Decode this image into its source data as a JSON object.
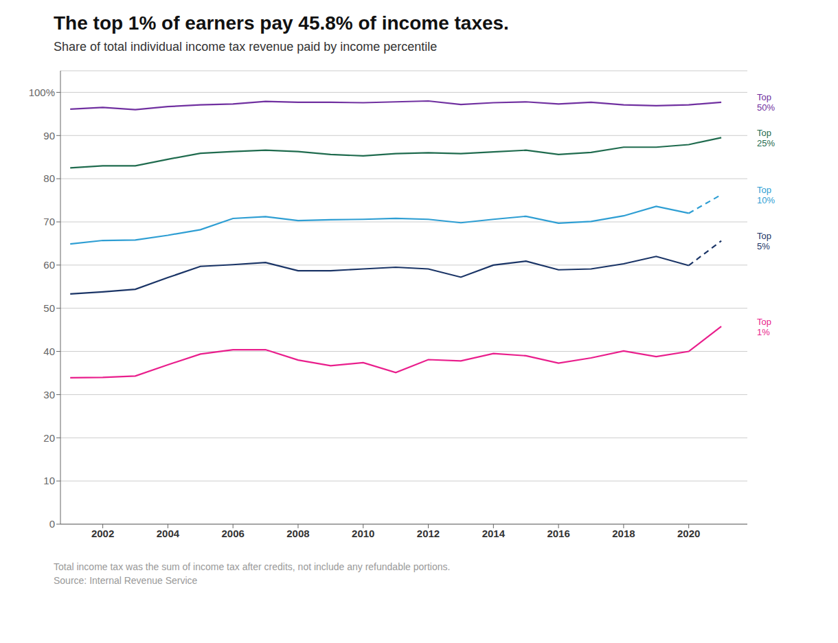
{
  "chart_data": {
    "type": "line",
    "title": "The top 1% of earners pay 45.8% of income taxes.",
    "subtitle": "Share of total individual income tax revenue paid by income percentile",
    "annotations": [
      "Total income tax was the sum of income tax after credits, not include any refundable portions.",
      "Source: Internal Revenue Service"
    ],
    "x": [
      2001,
      2002,
      2003,
      2004,
      2005,
      2006,
      2007,
      2008,
      2009,
      2010,
      2011,
      2012,
      2013,
      2014,
      2015,
      2016,
      2017,
      2018,
      2019,
      2020,
      2021
    ],
    "series": [
      {
        "name": "Top\n50%",
        "color": "#7030A0",
        "line_style": "solid",
        "values": [
          96.1,
          96.5,
          96.0,
          96.7,
          97.1,
          97.3,
          97.9,
          97.7,
          97.7,
          97.6,
          97.8,
          98.0,
          97.2,
          97.6,
          97.8,
          97.3,
          97.7,
          97.1,
          96.9,
          97.1,
          97.7
        ]
      },
      {
        "name": "Top\n25%",
        "color": "#1F6B4E",
        "line_style": "solid",
        "values": [
          82.5,
          83.0,
          83.0,
          84.5,
          85.9,
          86.3,
          86.6,
          86.3,
          85.6,
          85.3,
          85.8,
          86.0,
          85.8,
          86.2,
          86.6,
          85.6,
          86.1,
          87.3,
          87.3,
          87.9,
          89.5
        ]
      },
      {
        "name": "Top\n10%",
        "color": "#2E9ED3",
        "line_style": "dashed_last",
        "values": [
          64.9,
          65.7,
          65.8,
          66.9,
          68.2,
          70.8,
          71.2,
          70.3,
          70.5,
          70.6,
          70.8,
          70.6,
          69.8,
          70.6,
          71.3,
          69.7,
          70.1,
          71.4,
          73.6,
          72.0,
          76.3
        ]
      },
      {
        "name": "Top\n5%",
        "color": "#1A3466",
        "line_style": "dashed_last",
        "values": [
          53.3,
          53.8,
          54.4,
          57.1,
          59.7,
          60.1,
          60.6,
          58.7,
          58.7,
          59.1,
          59.5,
          59.1,
          57.2,
          60.0,
          60.9,
          58.9,
          59.1,
          60.3,
          62.0,
          59.9,
          65.6
        ]
      },
      {
        "name": "Top\n1%",
        "color": "#E91E8C",
        "line_style": "solid",
        "values": [
          33.9,
          34.0,
          34.3,
          36.9,
          39.4,
          40.4,
          40.4,
          38.0,
          36.7,
          37.4,
          35.1,
          38.1,
          37.8,
          39.5,
          39.0,
          37.3,
          38.5,
          40.1,
          38.8,
          40.0,
          45.8
        ]
      }
    ],
    "xlim": [
      2000.7,
      2021.8
    ],
    "xticks": [
      2002,
      2004,
      2006,
      2008,
      2010,
      2012,
      2014,
      2016,
      2018,
      2020
    ],
    "ylim": [
      0,
      105
    ],
    "yticks": [
      0,
      10,
      20,
      30,
      40,
      50,
      60,
      70,
      80,
      90,
      {
        "value": 100,
        "label": "100%"
      }
    ],
    "grid": "y"
  }
}
